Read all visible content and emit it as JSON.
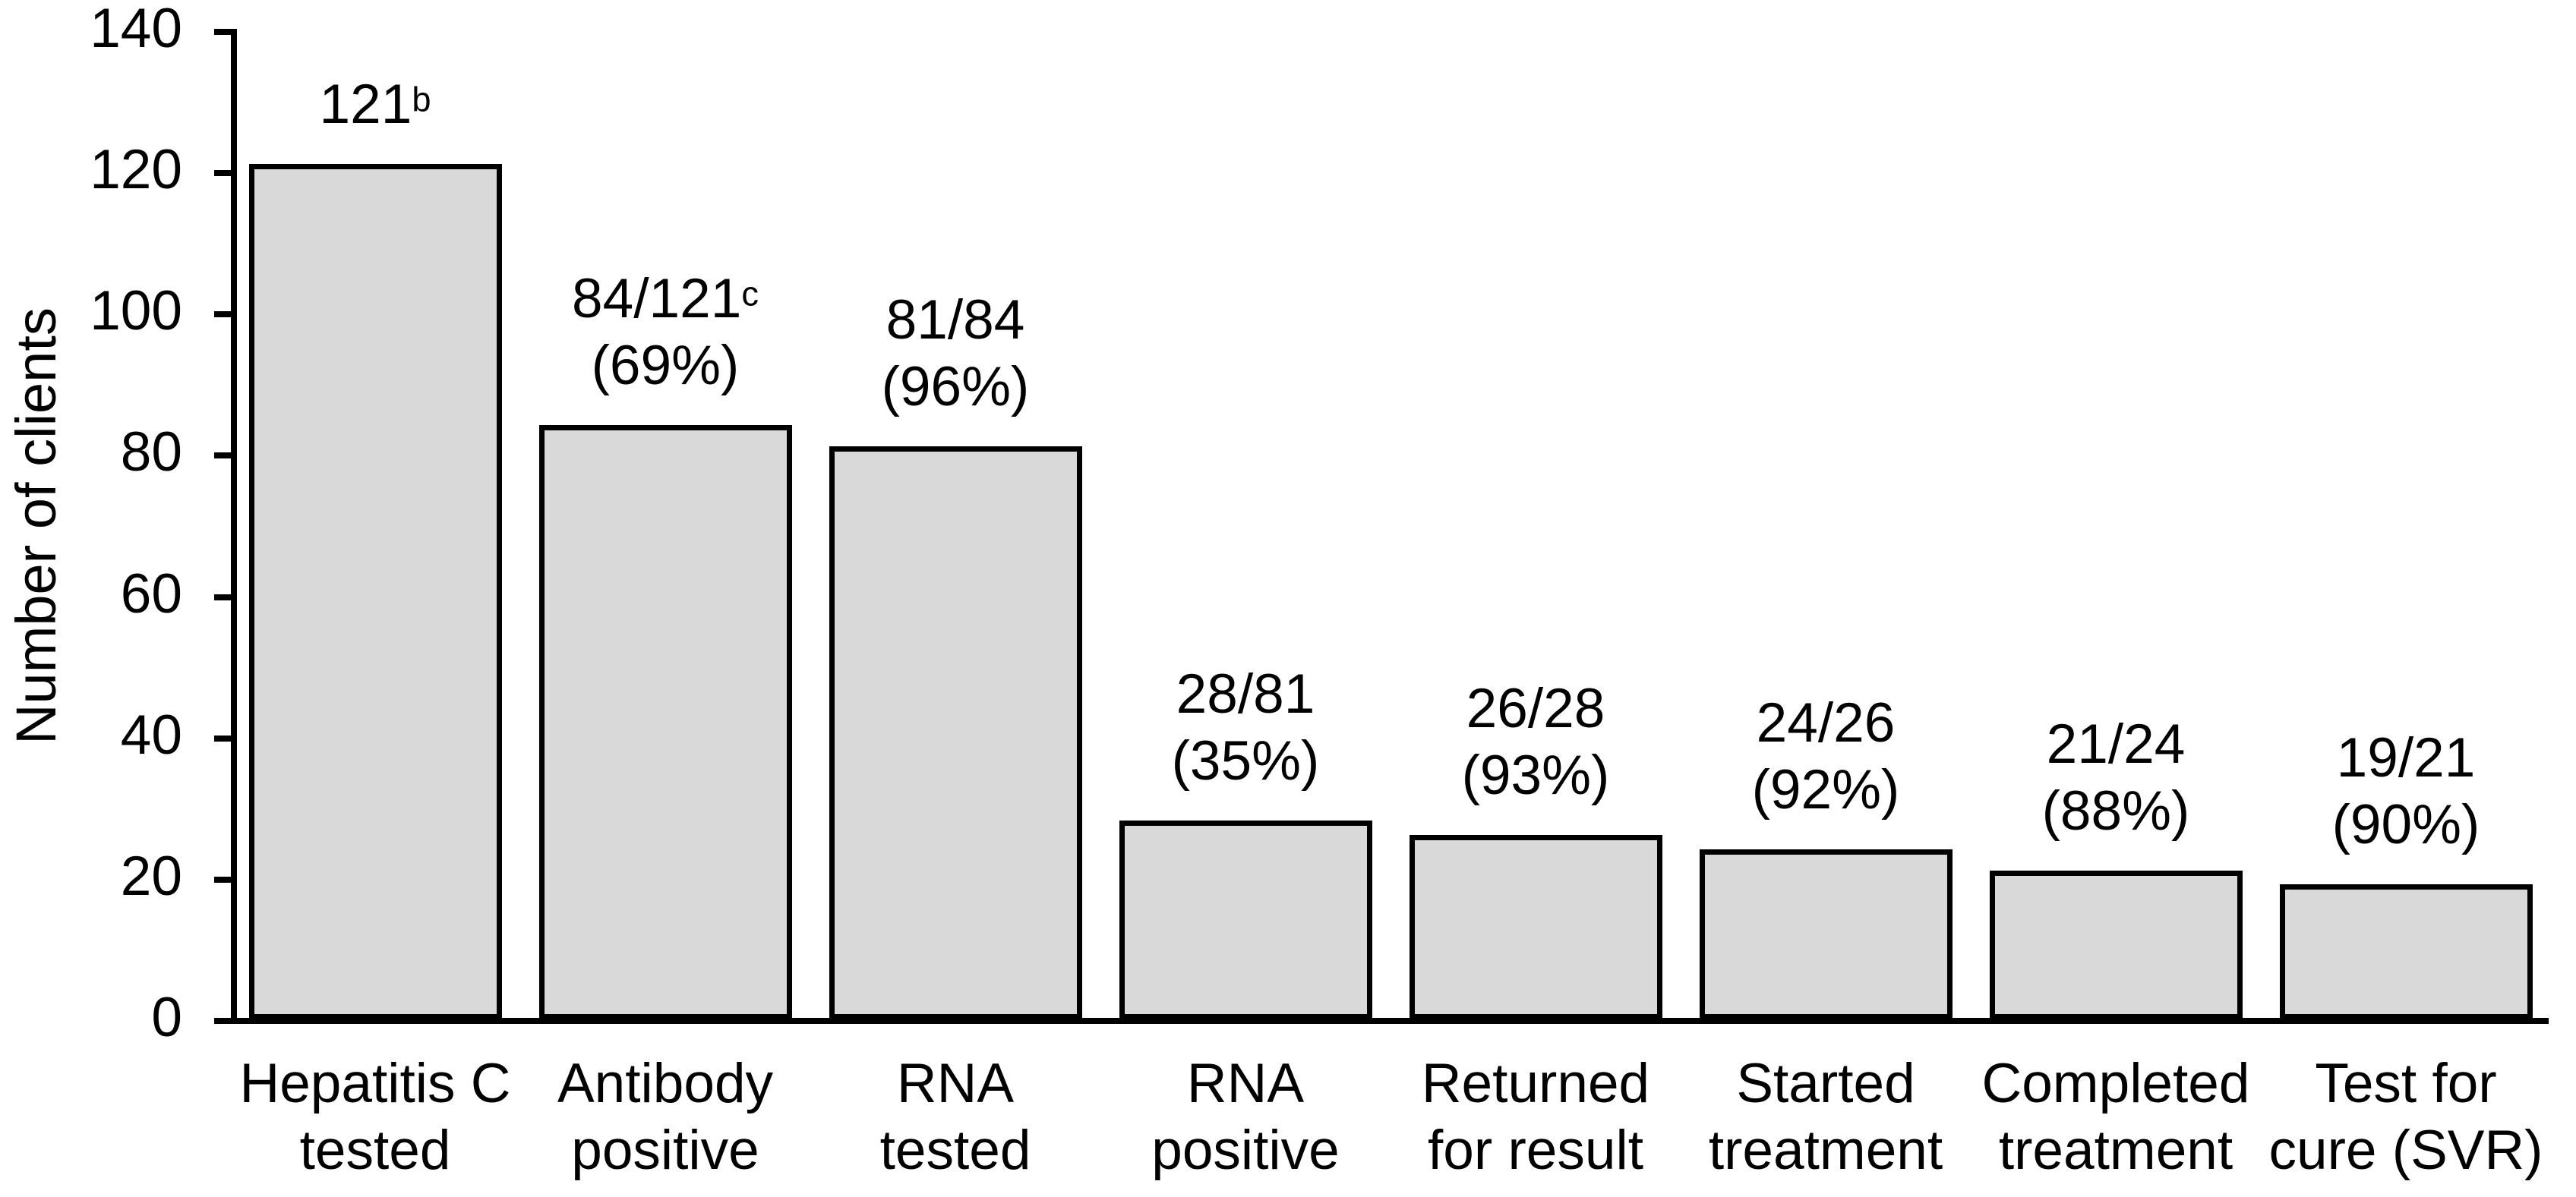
{
  "chart_data": {
    "type": "bar",
    "title": "",
    "xlabel": "",
    "ylabel": "Number of clients",
    "ylim": [
      0,
      140
    ],
    "yticks": [
      0,
      20,
      40,
      60,
      80,
      100,
      120,
      140
    ],
    "grid": false,
    "legend": null,
    "bar_fill_color": "#d9d9d9",
    "bar_border_color": "#000000",
    "axis_color": "#000000",
    "text_color": "#000000",
    "categories": [
      [
        "Hepatitis C",
        "tested"
      ],
      [
        "Antibody",
        "positive"
      ],
      [
        "RNA",
        "tested"
      ],
      [
        "RNA",
        "positive"
      ],
      [
        "Returned",
        "for result"
      ],
      [
        "Started",
        "treatment"
      ],
      [
        "Completed",
        "treatment"
      ],
      [
        "Test for",
        "cure (SVR)"
      ]
    ],
    "values": [
      121,
      84,
      81,
      28,
      26,
      24,
      21,
      19
    ],
    "bar_labels": [
      {
        "line1": "121",
        "line1_superscript": "b",
        "line2": ""
      },
      {
        "line1": "84/121",
        "line1_superscript": "c",
        "line2": "(69%)"
      },
      {
        "line1": "81/84",
        "line1_superscript": "",
        "line2": "(96%)"
      },
      {
        "line1": "28/81",
        "line1_superscript": "",
        "line2": "(35%)"
      },
      {
        "line1": "26/28",
        "line1_superscript": "",
        "line2": "(93%)"
      },
      {
        "line1": "24/26",
        "line1_superscript": "",
        "line2": "(92%)"
      },
      {
        "line1": "21/24",
        "line1_superscript": "",
        "line2": "(88%)"
      },
      {
        "line1": "19/21",
        "line1_superscript": "",
        "line2": "(90%)"
      }
    ]
  }
}
